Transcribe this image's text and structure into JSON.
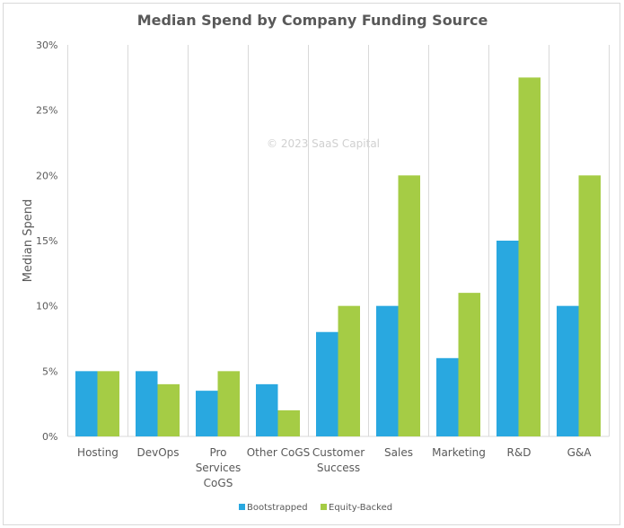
{
  "chart_data": {
    "type": "bar",
    "title": "Median Spend by Company Funding Source",
    "xlabel": "",
    "ylabel": "Median Spend",
    "ylim": [
      0,
      30
    ],
    "yticks": [
      "0%",
      "5%",
      "10%",
      "15%",
      "20%",
      "25%",
      "30%"
    ],
    "categories": [
      "Hosting",
      "DevOps",
      "Pro Services CoGS",
      "Other CoGS",
      "Customer Success",
      "Sales",
      "Marketing",
      "R&D",
      "G&A"
    ],
    "category_lines": [
      [
        "Hosting"
      ],
      [
        "DevOps"
      ],
      [
        "Pro",
        "Services",
        "CoGS"
      ],
      [
        "Other CoGS"
      ],
      [
        "Customer",
        "Success"
      ],
      [
        "Sales"
      ],
      [
        "Marketing"
      ],
      [
        "R&D"
      ],
      [
        "G&A"
      ]
    ],
    "series": [
      {
        "name": "Bootstrapped",
        "color": "#29a8e0",
        "values": [
          5,
          5,
          3.5,
          4,
          8,
          10,
          6,
          15,
          10
        ]
      },
      {
        "name": "Equity-Backed",
        "color": "#a5cc45",
        "values": [
          5,
          4,
          5,
          2,
          10,
          20,
          11,
          27.5,
          20
        ]
      }
    ],
    "grid": "vertical category separators",
    "legend": "bottom-center",
    "watermark": "© 2023 SaaS Capital"
  }
}
